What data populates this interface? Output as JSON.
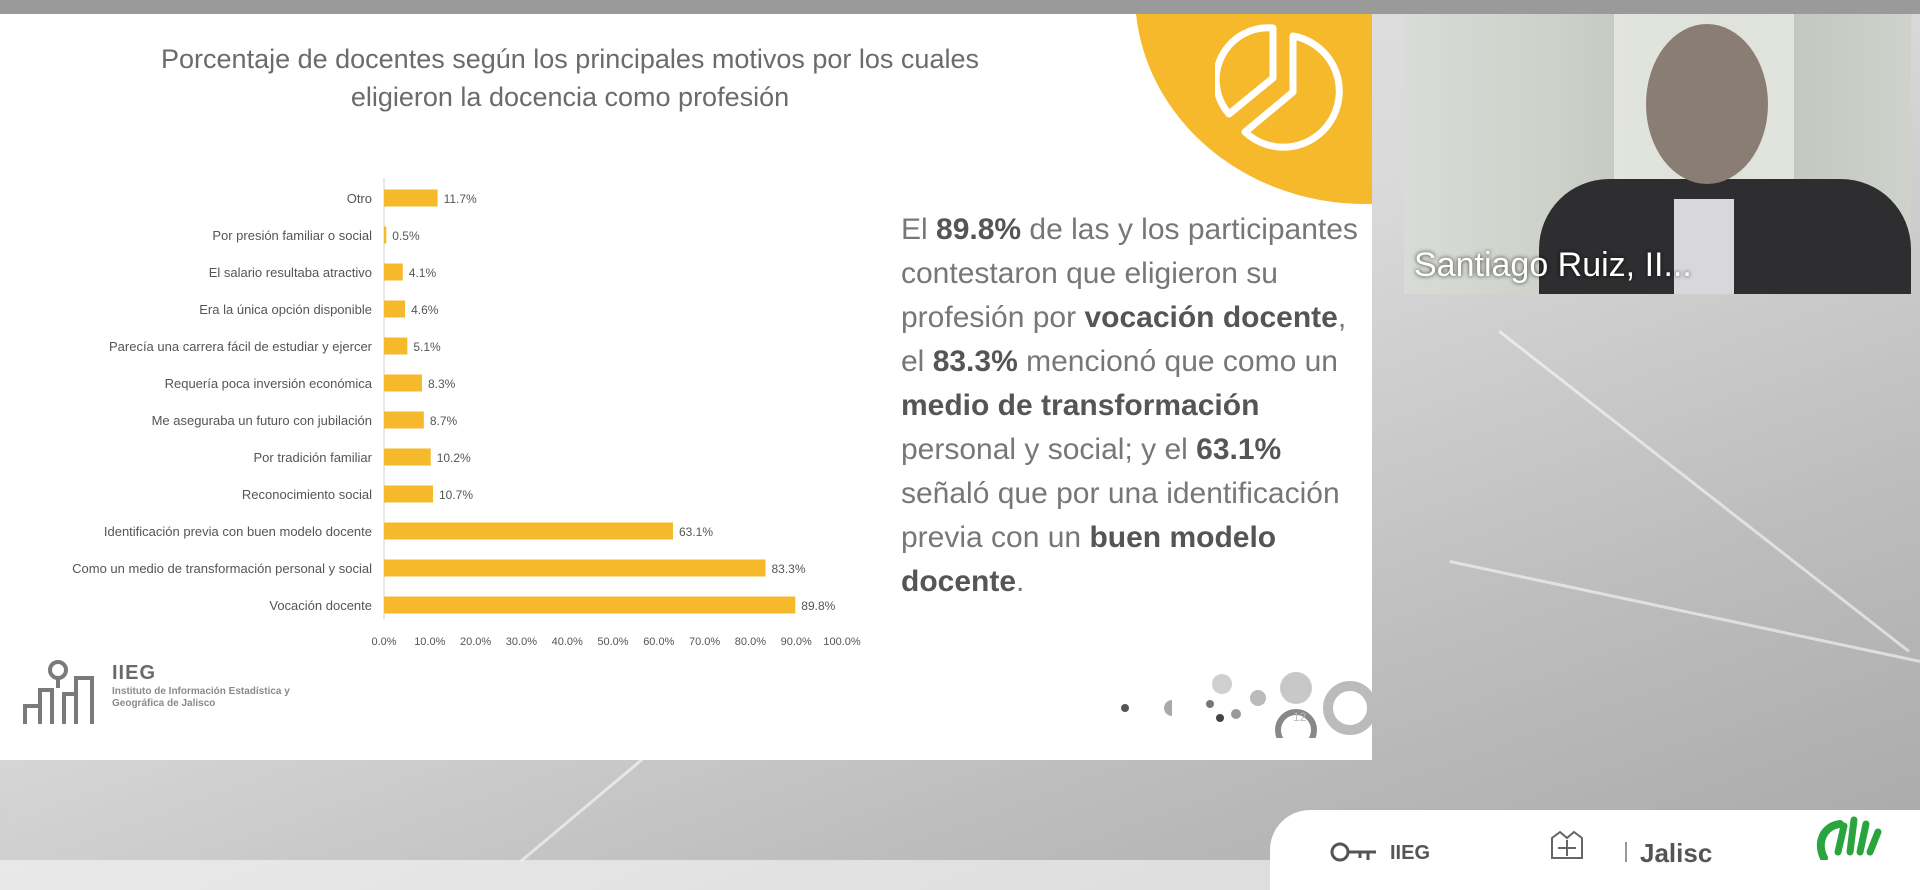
{
  "slide": {
    "title_line1": "Porcentaje de docentes según los principales motivos por los cuales",
    "title_line2": "eligieron la docencia como profesión",
    "page_number": "12",
    "summary": {
      "p1": "El ",
      "b1": "89.8%",
      "p2": " de las y los participantes contestaron que eligieron su profesión por ",
      "b2": "vocación docente",
      "p3": ", el ",
      "b3": "83.3%",
      "p4": " mencionó que como un ",
      "b4": "medio de transformación",
      "p5": " personal y social; y el ",
      "b5": "63.1%",
      "p6": " señaló que por una identificación previa con un ",
      "b6": "buen modelo docente",
      "p7": "."
    },
    "logo": {
      "title": "IIEG",
      "subtitle": "Instituto de Información Estadística y Geográfica de Jalisco"
    },
    "colors": {
      "bar": "#f6b92c",
      "accent": "#f6b92c"
    }
  },
  "chart_data": {
    "type": "bar",
    "orientation": "horizontal",
    "categories": [
      "Otro",
      "Por presión familiar o social",
      "El salario resultaba atractivo",
      "Era la única opción disponible",
      "Parecía una carrera fácil de estudiar y ejercer",
      "Requería poca inversión económica",
      "Me aseguraba un futuro con jubilación",
      "Por tradición familiar",
      "Reconocimiento social",
      "Identificación previa con buen modelo docente",
      "Como un medio de transformación personal y social",
      "Vocación docente"
    ],
    "values": [
      11.7,
      0.5,
      4.1,
      4.6,
      5.1,
      8.3,
      8.7,
      10.2,
      10.7,
      63.1,
      83.3,
      89.8
    ],
    "value_labels": [
      "11.7%",
      "0.5%",
      "4.1%",
      "4.6%",
      "5.1%",
      "8.3%",
      "8.7%",
      "10.2%",
      "10.7%",
      "63.1%",
      "83.3%",
      "89.8%"
    ],
    "xlim": [
      0,
      100
    ],
    "xticks": [
      0,
      10,
      20,
      30,
      40,
      50,
      60,
      70,
      80,
      90,
      100
    ],
    "xtick_labels": [
      "0.0%",
      "10.0%",
      "20.0%",
      "30.0%",
      "40.0%",
      "50.0%",
      "60.0%",
      "70.0%",
      "80.0%",
      "90.0%",
      "100.0%"
    ],
    "title": "",
    "xlabel": "",
    "ylabel": "",
    "grid": false,
    "legend": "none"
  },
  "video": {
    "participant_name": "Santiago Ruiz, II..."
  },
  "footer": {
    "org_label": "IIEG",
    "state_label": "Jalisc"
  }
}
